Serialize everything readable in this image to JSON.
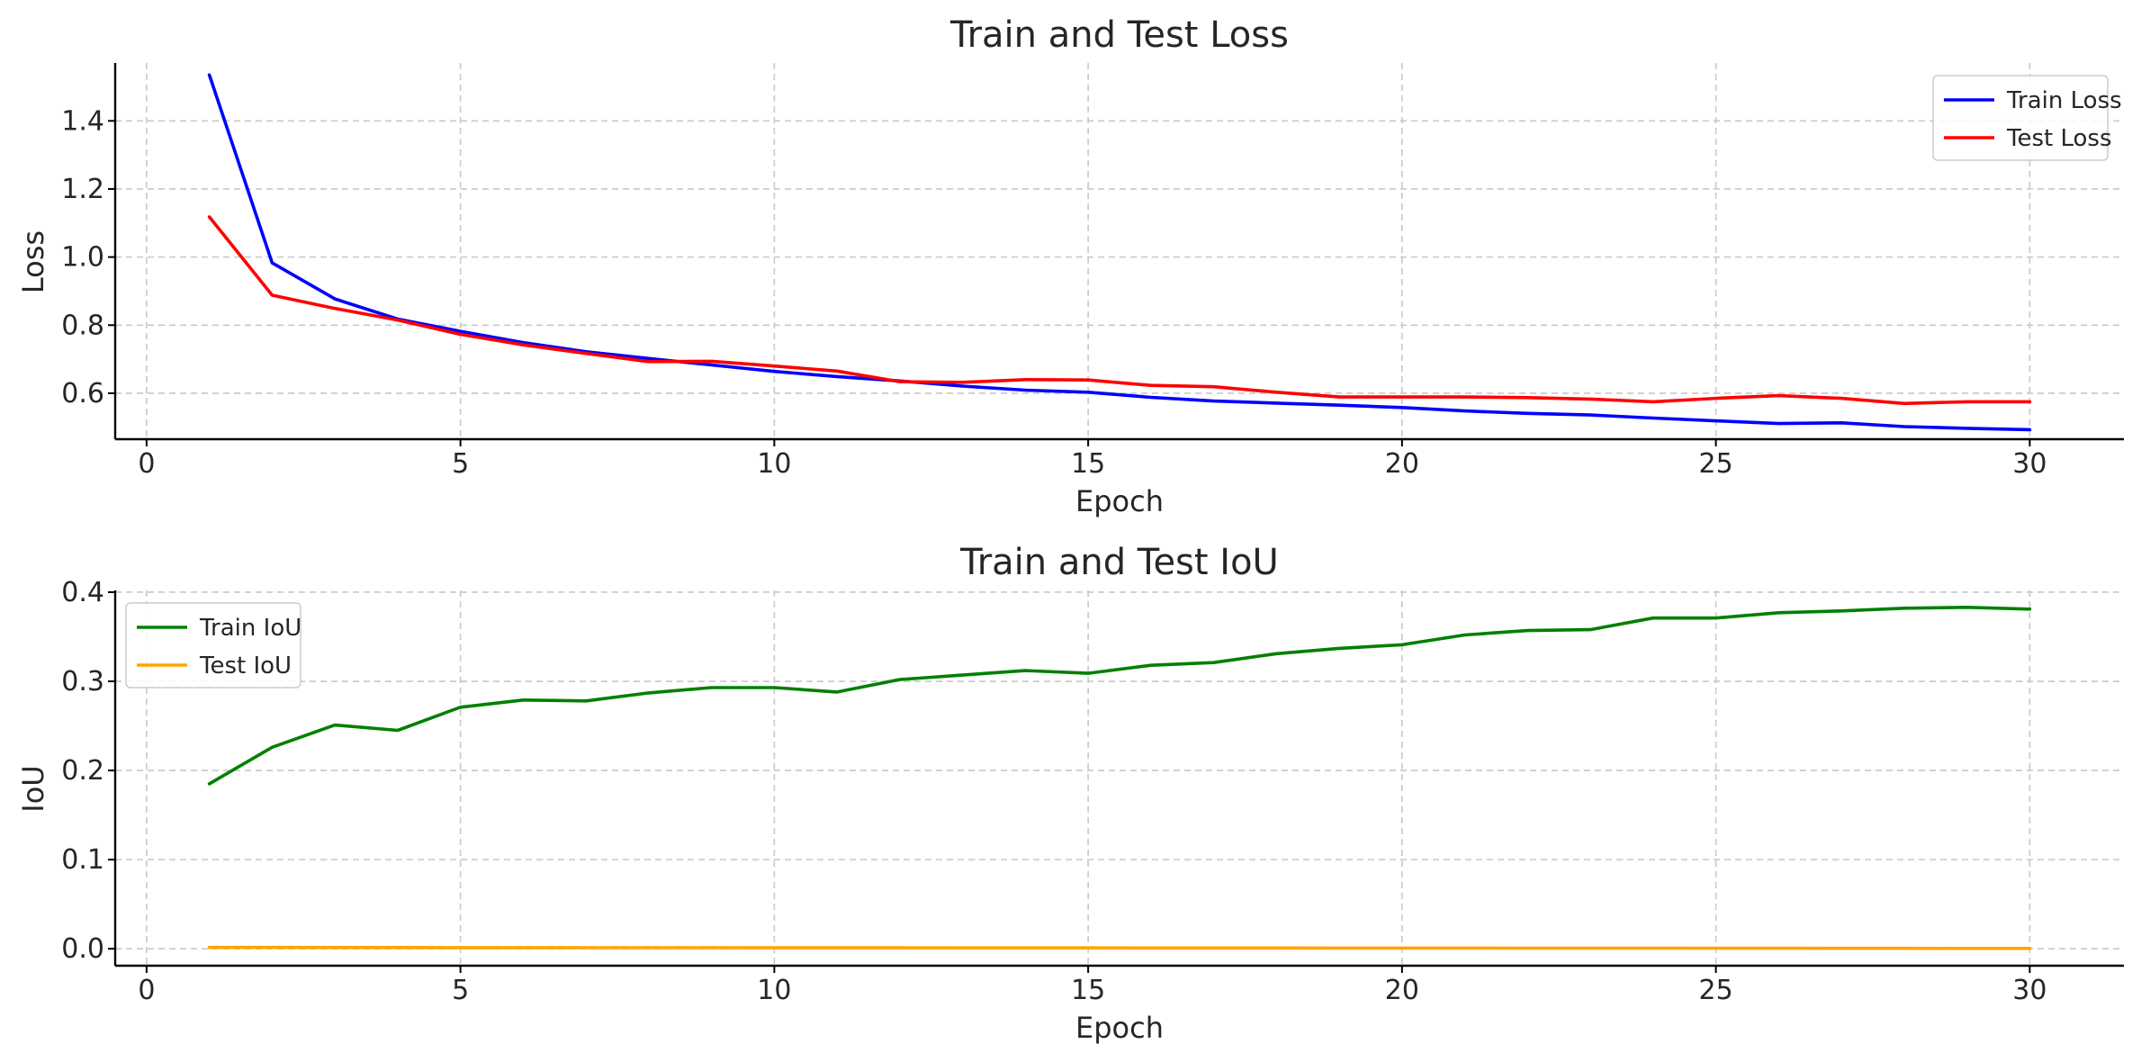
{
  "chart_data": [
    {
      "type": "line",
      "title": "Train and Test Loss",
      "xlabel": "Epoch",
      "ylabel": "Loss",
      "xlim": [
        -0.5,
        31.5
      ],
      "ylim": [
        0.465,
        1.57
      ],
      "xticks": [
        0,
        5,
        10,
        15,
        20,
        25,
        30
      ],
      "xtick_labels": [
        "0",
        "5",
        "10",
        "15",
        "20",
        "25",
        "30"
      ],
      "yticks": [
        0.6,
        0.8,
        1.0,
        1.2,
        1.4
      ],
      "ytick_labels": [
        "0.6",
        "0.8",
        "1.0",
        "1.2",
        "1.4"
      ],
      "grid": true,
      "legend_position": "top-right",
      "x": [
        1,
        2,
        3,
        4,
        5,
        6,
        7,
        8,
        9,
        10,
        11,
        12,
        13,
        14,
        15,
        16,
        17,
        18,
        19,
        20,
        21,
        22,
        23,
        24,
        25,
        26,
        27,
        28,
        29,
        30
      ],
      "series": [
        {
          "name": "Train Loss",
          "color": "#0000ff",
          "values": [
            1.535,
            0.983,
            0.877,
            0.818,
            0.782,
            0.749,
            0.722,
            0.702,
            0.683,
            0.664,
            0.649,
            0.636,
            0.621,
            0.609,
            0.603,
            0.588,
            0.577,
            0.571,
            0.565,
            0.558,
            0.548,
            0.541,
            0.536,
            0.527,
            0.519,
            0.511,
            0.513,
            0.502,
            0.497,
            0.493
          ]
        },
        {
          "name": "Test Loss",
          "color": "#ff0000",
          "values": [
            1.118,
            0.888,
            0.849,
            0.815,
            0.773,
            0.742,
            0.717,
            0.693,
            0.694,
            0.68,
            0.665,
            0.634,
            0.632,
            0.64,
            0.639,
            0.623,
            0.619,
            0.603,
            0.589,
            0.589,
            0.589,
            0.587,
            0.583,
            0.575,
            0.585,
            0.593,
            0.585,
            0.57,
            0.575,
            0.575
          ]
        }
      ]
    },
    {
      "type": "line",
      "title": "Train and Test IoU",
      "xlabel": "Epoch",
      "ylabel": "IoU",
      "xlim": [
        -0.5,
        31.5
      ],
      "ylim": [
        -0.019,
        0.402
      ],
      "xticks": [
        0,
        5,
        10,
        15,
        20,
        25,
        30
      ],
      "xtick_labels": [
        "0",
        "5",
        "10",
        "15",
        "20",
        "25",
        "30"
      ],
      "yticks": [
        0.0,
        0.1,
        0.2,
        0.3,
        0.4
      ],
      "ytick_labels": [
        "0.0",
        "0.1",
        "0.2",
        "0.3",
        "0.4"
      ],
      "grid": true,
      "legend_position": "top-left",
      "x": [
        1,
        2,
        3,
        4,
        5,
        6,
        7,
        8,
        9,
        10,
        11,
        12,
        13,
        14,
        15,
        16,
        17,
        18,
        19,
        20,
        21,
        22,
        23,
        24,
        25,
        26,
        27,
        28,
        29,
        30
      ],
      "series": [
        {
          "name": "Train IoU",
          "color": "#008000",
          "values": [
            0.185,
            0.226,
            0.251,
            0.245,
            0.271,
            0.279,
            0.278,
            0.287,
            0.293,
            0.293,
            0.288,
            0.302,
            0.307,
            0.312,
            0.309,
            0.318,
            0.321,
            0.331,
            0.337,
            0.341,
            0.352,
            0.357,
            0.358,
            0.371,
            0.371,
            0.377,
            0.379,
            0.382,
            0.383,
            0.381
          ]
        },
        {
          "name": "Test IoU",
          "color": "#ffa500",
          "values": [
            0.0015,
            0.0015,
            0.0014,
            0.0014,
            0.0013,
            0.0013,
            0.0012,
            0.0012,
            0.0012,
            0.0011,
            0.0011,
            0.0011,
            0.001,
            0.001,
            0.001,
            0.0009,
            0.0009,
            0.0009,
            0.0008,
            0.0008,
            0.0008,
            0.0007,
            0.0007,
            0.0007,
            0.0006,
            0.0006,
            0.0005,
            0.0005,
            0.0004,
            0.0004
          ]
        }
      ]
    }
  ]
}
